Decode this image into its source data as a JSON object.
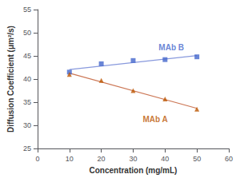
{
  "chart_data": {
    "type": "scatter",
    "xlabel": "Concentration (mg/mL)",
    "ylabel": "Diffusion Coefficient (μm²/s)",
    "xlim": [
      0,
      60
    ],
    "ylim": [
      25,
      55
    ],
    "xticks": [
      0,
      10,
      20,
      30,
      40,
      50,
      60
    ],
    "yticks": [
      25,
      30,
      35,
      40,
      45,
      50,
      55
    ],
    "grid": false,
    "series": [
      {
        "type": "line",
        "color": "#8899dd",
        "x": [
          10,
          50
        ],
        "values": [
          42.06,
          45.06
        ]
      },
      {
        "type": "scatter",
        "name": "MAb B",
        "color": "#4466cc",
        "marker": "square",
        "x": [
          10,
          20,
          30,
          40,
          50
        ],
        "values": [
          41.5,
          43.3,
          44.0,
          44.2,
          44.8
        ]
      },
      {
        "type": "line",
        "color": "#cc7755",
        "x": [
          10,
          50
        ],
        "values": [
          41.28,
          33.68
        ]
      },
      {
        "type": "scatter",
        "name": "MAb A",
        "color": "#bb5500",
        "marker": "triangle",
        "x": [
          10,
          20,
          30,
          40,
          50
        ],
        "values": [
          41.0,
          39.7,
          37.5,
          35.7,
          33.5
        ]
      }
    ],
    "annotations": [
      {
        "text": "MAb B",
        "x": 38,
        "y": 46.0,
        "color": "#4466cc"
      },
      {
        "text": "MAb A",
        "x": 33,
        "y": 30.5,
        "color": "#bb5500"
      }
    ]
  }
}
